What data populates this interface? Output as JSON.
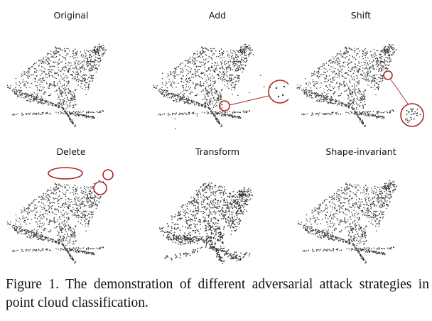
{
  "panels": [
    {
      "id": "original",
      "label": "Original"
    },
    {
      "id": "add",
      "label": "Add"
    },
    {
      "id": "shift",
      "label": "Shift"
    },
    {
      "id": "delete",
      "label": "Delete"
    },
    {
      "id": "transform",
      "label": "Transform"
    },
    {
      "id": "shape-invariant",
      "label": "Shape-invariant"
    }
  ],
  "caption": {
    "prefix": "Figure 1.",
    "text": "The demonstration of different adversarial attack strategies in point cloud classification."
  },
  "colors": {
    "points": "#333333",
    "highlight": "#b22222"
  }
}
